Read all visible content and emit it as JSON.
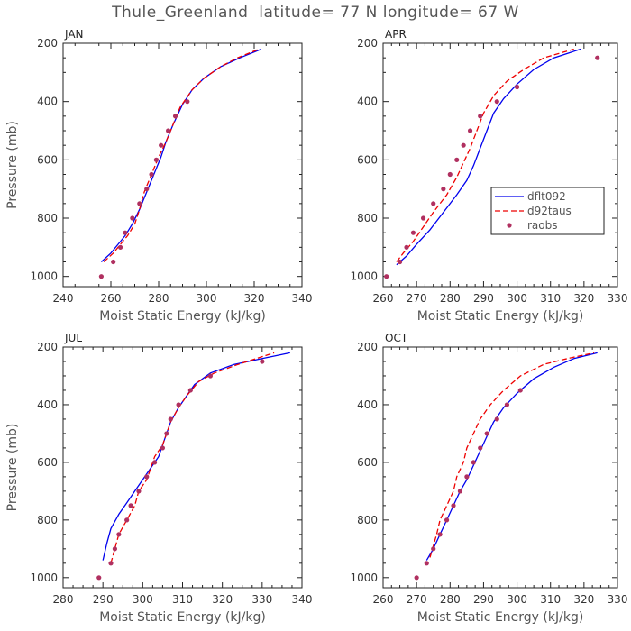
{
  "title": "Thule_Greenland  latitude= 77 N longitude= 67 W",
  "legend": {
    "items": [
      {
        "label": "dflt092",
        "color": "#0000ee",
        "style": "solid"
      },
      {
        "label": "d92taus",
        "color": "#ee0000",
        "style": "dashed"
      },
      {
        "label": "raobs",
        "color": "#b03060",
        "style": "dot"
      }
    ]
  },
  "chart_data": [
    {
      "type": "line",
      "panel": "JAN",
      "xlabel": "Moist Static Energy (kJ/kg)",
      "ylabel": "Pressure (mb)",
      "xlim": [
        240,
        340
      ],
      "ylim": [
        1000,
        200
      ],
      "xticks": [
        240,
        260,
        280,
        300,
        320,
        340
      ],
      "yticks": [
        200,
        400,
        600,
        800,
        1000
      ],
      "series": [
        {
          "name": "dflt092",
          "points": [
            [
              256,
              950
            ],
            [
              260,
              920
            ],
            [
              263,
              890
            ],
            [
              266,
              860
            ],
            [
              269,
              820
            ],
            [
              272,
              770
            ],
            [
              275,
              710
            ],
            [
              278,
              650
            ],
            [
              281,
              590
            ],
            [
              283,
              540
            ],
            [
              286,
              480
            ],
            [
              290,
              410
            ],
            [
              294,
              360
            ],
            [
              299,
              320
            ],
            [
              306,
              280
            ],
            [
              314,
              250
            ],
            [
              323,
              220
            ]
          ]
        },
        {
          "name": "d92taus",
          "points": [
            [
              257,
              950
            ],
            [
              261,
              920
            ],
            [
              264,
              890
            ],
            [
              267,
              860
            ],
            [
              270,
              820
            ],
            [
              272,
              770
            ],
            [
              274,
              710
            ],
            [
              277,
              650
            ],
            [
              280,
              590
            ],
            [
              283,
              540
            ],
            [
              286,
              480
            ],
            [
              289,
              420
            ],
            [
              294,
              360
            ],
            [
              299,
              320
            ],
            [
              306,
              280
            ],
            [
              313,
              250
            ],
            [
              322,
              220
            ]
          ]
        },
        {
          "name": "raobs",
          "points": [
            [
              256,
              1000
            ],
            [
              261,
              950
            ],
            [
              264,
              900
            ],
            [
              266,
              850
            ],
            [
              269,
              800
            ],
            [
              272,
              750
            ],
            [
              275,
              700
            ],
            [
              277,
              650
            ],
            [
              279,
              600
            ],
            [
              281,
              550
            ],
            [
              284,
              500
            ],
            [
              287,
              450
            ],
            [
              292,
              400
            ]
          ]
        }
      ]
    },
    {
      "type": "line",
      "panel": "APR",
      "xlabel": "Moist Static Energy (kJ/kg)",
      "ylabel": "",
      "xlim": [
        260,
        330
      ],
      "ylim": [
        1000,
        200
      ],
      "xticks": [
        260,
        270,
        280,
        290,
        300,
        310,
        320,
        330
      ],
      "yticks": [
        200,
        400,
        600,
        800,
        1000
      ],
      "series": [
        {
          "name": "dflt092",
          "points": [
            [
              264,
              960
            ],
            [
              267,
              930
            ],
            [
              270,
              890
            ],
            [
              274,
              840
            ],
            [
              278,
              780
            ],
            [
              282,
              720
            ],
            [
              285,
              670
            ],
            [
              287,
              620
            ],
            [
              289,
              560
            ],
            [
              291,
              500
            ],
            [
              293,
              440
            ],
            [
              296,
              390
            ],
            [
              300,
              340
            ],
            [
              305,
              290
            ],
            [
              311,
              250
            ],
            [
              319,
              220
            ]
          ]
        },
        {
          "name": "d92taus",
          "points": [
            [
              264,
              950
            ],
            [
              266,
              920
            ],
            [
              269,
              880
            ],
            [
              272,
              830
            ],
            [
              275,
              780
            ],
            [
              279,
              720
            ],
            [
              282,
              660
            ],
            [
              284,
              610
            ],
            [
              286,
              560
            ],
            [
              288,
              500
            ],
            [
              290,
              440
            ],
            [
              293,
              380
            ],
            [
              297,
              330
            ],
            [
              302,
              290
            ],
            [
              308,
              250
            ],
            [
              317,
              220
            ]
          ]
        },
        {
          "name": "raobs",
          "points": [
            [
              261,
              1000
            ],
            [
              265,
              950
            ],
            [
              267,
              900
            ],
            [
              269,
              850
            ],
            [
              272,
              800
            ],
            [
              275,
              750
            ],
            [
              278,
              700
            ],
            [
              280,
              650
            ],
            [
              282,
              600
            ],
            [
              284,
              550
            ],
            [
              286,
              500
            ],
            [
              289,
              450
            ],
            [
              294,
              400
            ],
            [
              300,
              350
            ],
            [
              324,
              250
            ]
          ]
        }
      ]
    },
    {
      "type": "line",
      "panel": "JUL",
      "xlabel": "Moist Static Energy (kJ/kg)",
      "ylabel": "Pressure (mb)",
      "xlim": [
        280,
        340
      ],
      "ylim": [
        1000,
        200
      ],
      "xticks": [
        280,
        290,
        300,
        310,
        320,
        330,
        340
      ],
      "yticks": [
        200,
        400,
        600,
        800,
        1000
      ],
      "series": [
        {
          "name": "dflt092",
          "points": [
            [
              290,
              940
            ],
            [
              291,
              880
            ],
            [
              292,
              830
            ],
            [
              294,
              780
            ],
            [
              296,
              740
            ],
            [
              298,
              700
            ],
            [
              300,
              660
            ],
            [
              302,
              620
            ],
            [
              304,
              580
            ],
            [
              305,
              540
            ],
            [
              306,
              500
            ],
            [
              307,
              460
            ],
            [
              309,
              410
            ],
            [
              311,
              370
            ],
            [
              313,
              330
            ],
            [
              317,
              290
            ],
            [
              323,
              260
            ],
            [
              330,
              240
            ],
            [
              337,
              220
            ]
          ]
        },
        {
          "name": "d92taus",
          "points": [
            [
              292,
              950
            ],
            [
              293,
              900
            ],
            [
              294,
              850
            ],
            [
              296,
              800
            ],
            [
              298,
              750
            ],
            [
              299,
              700
            ],
            [
              301,
              660
            ],
            [
              302,
              620
            ],
            [
              303,
              580
            ],
            [
              305,
              540
            ],
            [
              306,
              500
            ],
            [
              307,
              460
            ],
            [
              309,
              410
            ],
            [
              311,
              370
            ],
            [
              314,
              320
            ],
            [
              318,
              290
            ],
            [
              324,
              260
            ],
            [
              333,
              220
            ]
          ]
        },
        {
          "name": "raobs",
          "points": [
            [
              289,
              1000
            ],
            [
              292,
              950
            ],
            [
              293,
              900
            ],
            [
              294,
              850
            ],
            [
              296,
              800
            ],
            [
              297,
              750
            ],
            [
              299,
              700
            ],
            [
              301,
              650
            ],
            [
              303,
              600
            ],
            [
              305,
              550
            ],
            [
              306,
              500
            ],
            [
              307,
              450
            ],
            [
              309,
              400
            ],
            [
              312,
              350
            ],
            [
              317,
              300
            ],
            [
              330,
              250
            ]
          ]
        }
      ]
    },
    {
      "type": "line",
      "panel": "OCT",
      "xlabel": "Moist Static Energy (kJ/kg)",
      "ylabel": "",
      "xlim": [
        260,
        330
      ],
      "ylim": [
        1000,
        200
      ],
      "xticks": [
        260,
        270,
        280,
        290,
        300,
        310,
        320,
        330
      ],
      "yticks": [
        200,
        400,
        600,
        800,
        1000
      ],
      "series": [
        {
          "name": "dflt092",
          "points": [
            [
              273,
              940
            ],
            [
              275,
              900
            ],
            [
              277,
              850
            ],
            [
              279,
              800
            ],
            [
              281,
              750
            ],
            [
              283,
              700
            ],
            [
              285,
              660
            ],
            [
              287,
              610
            ],
            [
              289,
              560
            ],
            [
              291,
              510
            ],
            [
              293,
              460
            ],
            [
              296,
              410
            ],
            [
              300,
              360
            ],
            [
              305,
              310
            ],
            [
              311,
              270
            ],
            [
              317,
              240
            ],
            [
              324,
              220
            ]
          ]
        },
        {
          "name": "d92taus",
          "points": [
            [
              274,
              930
            ],
            [
              275,
              890
            ],
            [
              276,
              850
            ],
            [
              277,
              800
            ],
            [
              279,
              750
            ],
            [
              281,
              700
            ],
            [
              282,
              650
            ],
            [
              284,
              600
            ],
            [
              285,
              550
            ],
            [
              287,
              500
            ],
            [
              289,
              450
            ],
            [
              292,
              400
            ],
            [
              296,
              350
            ],
            [
              301,
              300
            ],
            [
              308,
              260
            ],
            [
              315,
              240
            ],
            [
              323,
              220
            ]
          ]
        },
        {
          "name": "raobs",
          "points": [
            [
              270,
              1000
            ],
            [
              273,
              950
            ],
            [
              275,
              900
            ],
            [
              277,
              850
            ],
            [
              279,
              800
            ],
            [
              281,
              750
            ],
            [
              283,
              700
            ],
            [
              285,
              650
            ],
            [
              287,
              600
            ],
            [
              289,
              550
            ],
            [
              291,
              500
            ],
            [
              294,
              450
            ],
            [
              297,
              400
            ],
            [
              301,
              350
            ]
          ]
        }
      ]
    }
  ]
}
